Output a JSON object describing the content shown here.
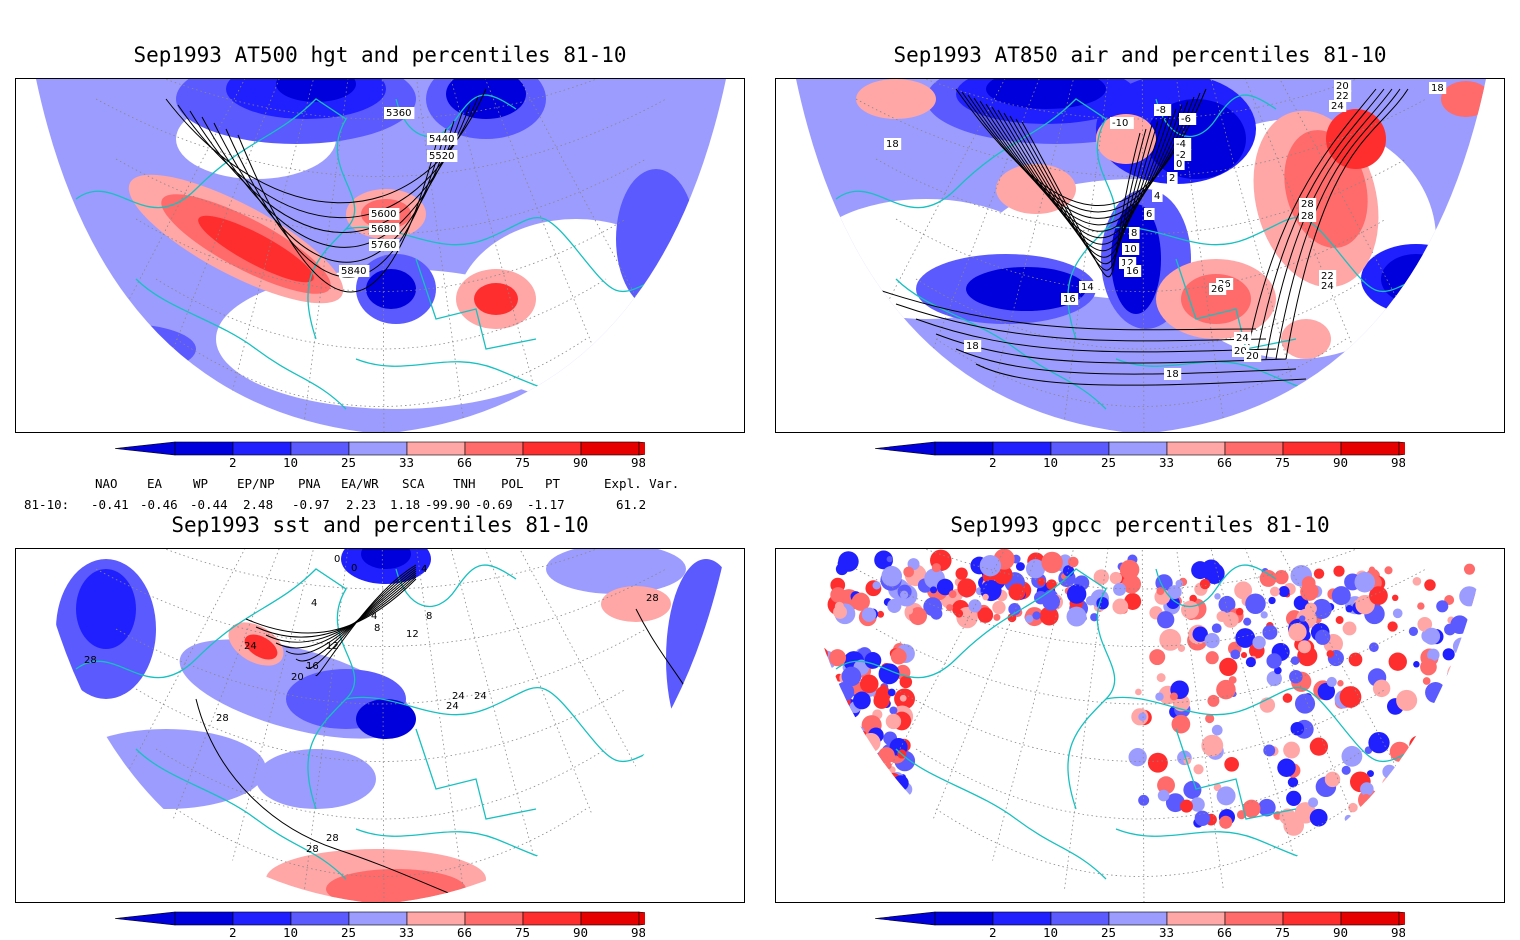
{
  "panels": [
    {
      "title": "Sep1993 AT500 hgt and percentiles 81-10",
      "contour_labels": [
        "5360",
        "5440",
        "5520",
        "5600",
        "5680",
        "5760",
        "5840"
      ]
    },
    {
      "title": "Sep1993 AT850 air and percentiles 81-10",
      "contour_labels": [
        "-10",
        "-8",
        "-6",
        "-4",
        "-2",
        "0",
        "2",
        "4",
        "6",
        "8",
        "10",
        "12",
        "14",
        "16",
        "16",
        "16",
        "16",
        "18",
        "18",
        "18",
        "18",
        "18",
        "20",
        "20",
        "20",
        "22",
        "22",
        "24",
        "24",
        "24",
        "26",
        "26",
        "28",
        "28"
      ]
    },
    {
      "title": "Sep1993 sst and percentiles 81-10",
      "contour_labels": [
        "0",
        "0",
        "4",
        "4",
        "4",
        "8",
        "8",
        "12",
        "12",
        "16",
        "20",
        "24",
        "24",
        "24",
        "24",
        "28",
        "28",
        "28",
        "28",
        "28"
      ]
    },
    {
      "title": "Sep1993 gpcc percentiles 81-10",
      "contour_labels": []
    }
  ],
  "colorbar": {
    "labels": [
      "2",
      "10",
      "25",
      "33",
      "66",
      "75",
      "90",
      "98"
    ],
    "colors": {
      "b98": "#0000dd",
      "b90": "#2020ff",
      "b75": "#5a5aff",
      "b66": "#9c9cff",
      "white": "#ffffff",
      "r66": "#ffa6a6",
      "r75": "#ff6a6a",
      "r90": "#ff2e2e",
      "r98": "#e60000"
    }
  },
  "indices": {
    "headers": [
      "NAO",
      "EA",
      "WP",
      "EP/NP",
      "PNA",
      "EA/WR",
      "SCA",
      "TNH",
      "POL",
      "PT",
      "Expl. Var."
    ],
    "row_label": "81-10:",
    "values": [
      "-0.41",
      "-0.46",
      "-0.44",
      "2.48",
      "-0.97",
      "2.23",
      "1.18",
      "-99.90",
      "-0.69",
      "-1.17",
      "61.2"
    ]
  },
  "colors": {
    "coast": "#18c0c0",
    "contour": "#000000",
    "grid": "#888888"
  }
}
